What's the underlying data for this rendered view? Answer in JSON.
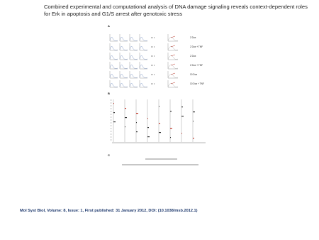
{
  "header": {
    "title_lines": [
      "Combined experimental and computational analysis of DNA damage signaling reveals context-dependent roles",
      "for Erk in apoptosis and G1/S arrest after genotoxic stress"
    ]
  },
  "figure": {
    "panels": [
      "A",
      "B",
      "C"
    ],
    "row_labels": [
      "2 Dox",
      "2 Dox + TNF",
      "2 Dox",
      "2 Dox + TNF",
      "10 Dox",
      "10 Dox + TNF"
    ]
  },
  "footer": {
    "citation": "Mol Syst Biol, Volume: 8, Issue: 1, First published: 31 January 2012, DOI: (10.1038/msb.2012.1)"
  }
}
